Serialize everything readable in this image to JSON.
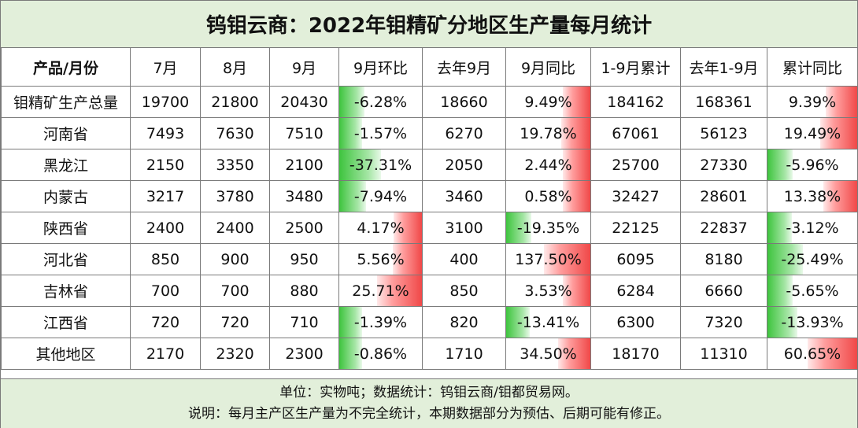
{
  "title": "钨钼云商：2022年钼精矿分地区生产量每月统计",
  "headers": [
    "产品/月份",
    "7月",
    "8月",
    "9月",
    "9月环比",
    "去年9月",
    "9月同比",
    "1-9月累计",
    "去年1-9月",
    "累计同比"
  ],
  "rows": [
    {
      "name": "钼精矿生产总量",
      "jul": "19700",
      "aug": "21800",
      "sep": "20430",
      "mom": {
        "text": "-6.28%",
        "pct": -6.28
      },
      "ly_sep": "18660",
      "yoy": {
        "text": "9.49%",
        "pct": 9.49
      },
      "ytd": "184162",
      "ly_ytd": "168361",
      "ytd_yoy": {
        "text": "9.39%",
        "pct": 9.39
      }
    },
    {
      "name": "河南省",
      "jul": "7493",
      "aug": "7630",
      "sep": "7510",
      "mom": {
        "text": "-1.57%",
        "pct": -1.57
      },
      "ly_sep": "6270",
      "yoy": {
        "text": "19.78%",
        "pct": 19.78
      },
      "ytd": "67061",
      "ly_ytd": "56123",
      "ytd_yoy": {
        "text": "19.49%",
        "pct": 19.49
      }
    },
    {
      "name": "黑龙江",
      "jul": "2150",
      "aug": "3350",
      "sep": "2100",
      "mom": {
        "text": "-37.31%",
        "pct": -37.31
      },
      "ly_sep": "2050",
      "yoy": {
        "text": "2.44%",
        "pct": 2.44
      },
      "ytd": "25700",
      "ly_ytd": "27330",
      "ytd_yoy": {
        "text": "-5.96%",
        "pct": -5.96
      }
    },
    {
      "name": "内蒙古",
      "jul": "3217",
      "aug": "3780",
      "sep": "3480",
      "mom": {
        "text": "-7.94%",
        "pct": -7.94
      },
      "ly_sep": "3460",
      "yoy": {
        "text": "0.58%",
        "pct": 0.58
      },
      "ytd": "32427",
      "ly_ytd": "28601",
      "ytd_yoy": {
        "text": "13.38%",
        "pct": 13.38
      }
    },
    {
      "name": "陕西省",
      "jul": "2400",
      "aug": "2400",
      "sep": "2500",
      "mom": {
        "text": "4.17%",
        "pct": 4.17
      },
      "ly_sep": "3100",
      "yoy": {
        "text": "-19.35%",
        "pct": -19.35
      },
      "ytd": "22125",
      "ly_ytd": "22837",
      "ytd_yoy": {
        "text": "-3.12%",
        "pct": -3.12
      }
    },
    {
      "name": "河北省",
      "jul": "850",
      "aug": "900",
      "sep": "950",
      "mom": {
        "text": "5.56%",
        "pct": 5.56
      },
      "ly_sep": "400",
      "yoy": {
        "text": "137.50%",
        "pct": 137.5
      },
      "ytd": "6095",
      "ly_ytd": "8180",
      "ytd_yoy": {
        "text": "-25.49%",
        "pct": -25.49
      }
    },
    {
      "name": "吉林省",
      "jul": "700",
      "aug": "700",
      "sep": "880",
      "mom": {
        "text": "25.71%",
        "pct": 25.71
      },
      "ly_sep": "850",
      "yoy": {
        "text": "3.53%",
        "pct": 3.53
      },
      "ytd": "6284",
      "ly_ytd": "6660",
      "ytd_yoy": {
        "text": "-5.65%",
        "pct": -5.65
      }
    },
    {
      "name": "江西省",
      "jul": "720",
      "aug": "720",
      "sep": "710",
      "mom": {
        "text": "-1.39%",
        "pct": -1.39
      },
      "ly_sep": "820",
      "yoy": {
        "text": "-13.41%",
        "pct": -13.41
      },
      "ytd": "6300",
      "ly_ytd": "7320",
      "ytd_yoy": {
        "text": "-13.93%",
        "pct": -13.93
      }
    },
    {
      "name": "其他地区",
      "jul": "2170",
      "aug": "2320",
      "sep": "2300",
      "mom": {
        "text": "-0.86%",
        "pct": -0.86
      },
      "ly_sep": "1710",
      "yoy": {
        "text": "34.50%",
        "pct": 34.5
      },
      "ytd": "18170",
      "ly_ytd": "11310",
      "ytd_yoy": {
        "text": "60.65%",
        "pct": 60.65
      }
    }
  ],
  "footer": {
    "line1": "单位：实物吨；数据统计：钨钼云商/钼都贸易网。",
    "line2": "说明：每月主产区生产量为不完全统计，本期数据部分为预估、后期可能有修正。"
  },
  "colors": {
    "title_bg": "#e2efda",
    "positive": "#f04848",
    "negative": "#3ec43e",
    "border": "#7a7a7a"
  }
}
